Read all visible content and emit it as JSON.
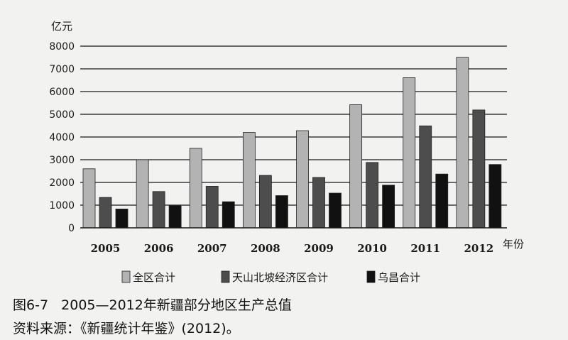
{
  "chart_data": {
    "type": "bar",
    "ylabel": "亿元",
    "xlabel": "年份",
    "categories": [
      "2005",
      "2006",
      "2007",
      "2008",
      "2009",
      "2010",
      "2011",
      "2012"
    ],
    "ylim": [
      0,
      8000
    ],
    "yticks": [
      0,
      1000,
      2000,
      3000,
      4000,
      5000,
      6000,
      7000,
      8000
    ],
    "grid": true,
    "legend_position": "bottom",
    "series": [
      {
        "name": "全区合计",
        "color": "#b3b3b3",
        "values": [
          2600,
          3000,
          3500,
          4200,
          4280,
          5420,
          6610,
          7510
        ]
      },
      {
        "name": "天山北坡经济区合计",
        "color": "#4d4d4d",
        "values": [
          1340,
          1600,
          1830,
          2310,
          2220,
          2880,
          4490,
          5190
        ]
      },
      {
        "name": "乌昌合计",
        "color": "#111111",
        "values": [
          830,
          980,
          1150,
          1420,
          1530,
          1880,
          2370,
          2790
        ]
      }
    ]
  },
  "caption": {
    "title": "图6-7   2005—2012年新疆部分地区生产总值",
    "source": "资料来源：《新疆统计年鉴》(2012)。"
  }
}
